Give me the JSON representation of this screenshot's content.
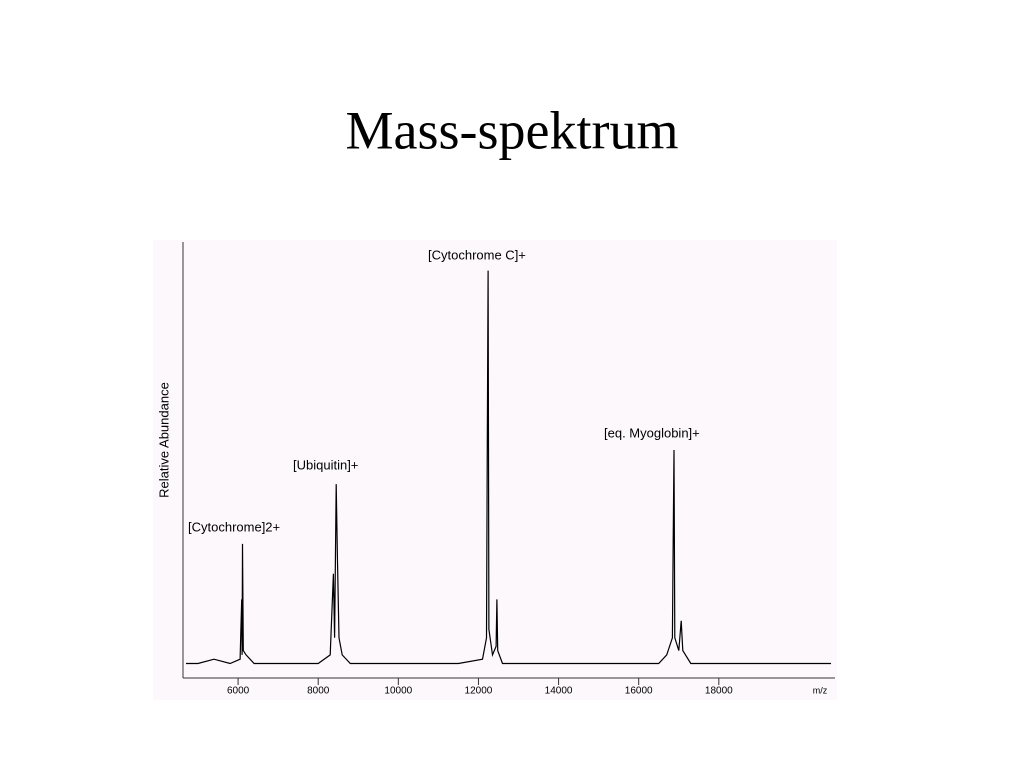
{
  "chart_data": {
    "type": "line",
    "title": "Mass-spektrum",
    "y_label": "Relative Abundance",
    "x_label": "m/z",
    "x": [
      4700,
      5000,
      5400,
      5800,
      6050,
      6090,
      6100,
      6110,
      6130,
      6200,
      6400,
      7000,
      7500,
      8000,
      8300,
      8380,
      8410,
      8450,
      8480,
      8520,
      8600,
      8800,
      9500,
      10500,
      11500,
      12100,
      12200,
      12220,
      12240,
      12260,
      12350,
      12440,
      12460,
      12480,
      12600,
      13500,
      14500,
      15500,
      16500,
      16700,
      16840,
      16860,
      16880,
      16900,
      17000,
      17060,
      17100,
      17300,
      18500,
      19500,
      20800
    ],
    "values": [
      2,
      2,
      3,
      2,
      3,
      17,
      4,
      30,
      5,
      4,
      2,
      2,
      2,
      2,
      4,
      23,
      8,
      44,
      27,
      8,
      4,
      2,
      2,
      2,
      2,
      3,
      8,
      54,
      94,
      10,
      4,
      6,
      17,
      5,
      2,
      2,
      2,
      2,
      2,
      4,
      8,
      31,
      52,
      8,
      5,
      12,
      5,
      2,
      2,
      2,
      2
    ],
    "color": "#000000",
    "xlim": [
      4625,
      20900
    ],
    "ylim": [
      0,
      100
    ],
    "xticks": [
      6000,
      8000,
      10000,
      12000,
      14000,
      16000,
      18000
    ],
    "annotations": [
      "[Cytochrome]2+",
      "[Ubiquitin]+",
      "[Cytochrome C]+",
      "[eq. Myoglobin]+"
    ]
  }
}
